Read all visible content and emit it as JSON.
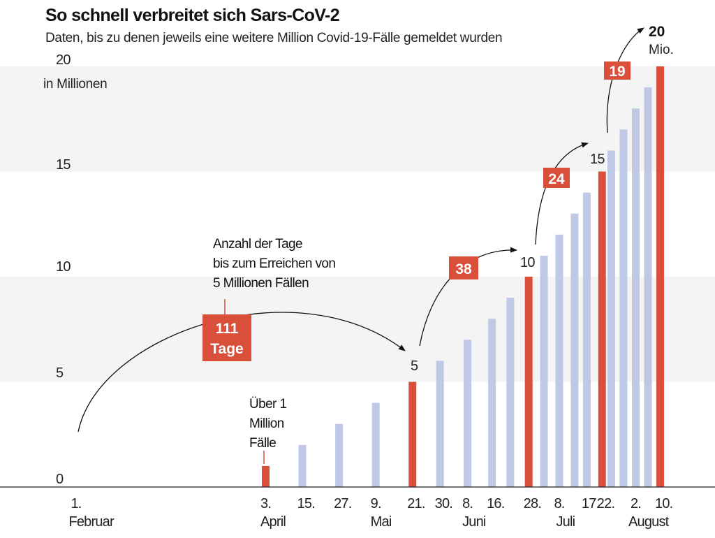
{
  "chart_data": {
    "type": "bar",
    "title": "So schnell verbreitet sich Sars-CoV-2",
    "subtitle": "Daten, bis zu denen jeweils eine weitere Million Covid-19-Fälle gemeldet wurden",
    "ylabel": "in Millionen",
    "ylim": [
      0,
      20
    ],
    "yticks": [
      "0",
      "5",
      "10",
      "15",
      "20"
    ],
    "grid": "alternating horizontal bands",
    "colors": {
      "milestone": "#d94f3a",
      "other": "#bfc9e6",
      "band": "#f4f4f4"
    },
    "bars": [
      {
        "date": "2020-04-03",
        "value": 1,
        "milestone": true
      },
      {
        "date": "2020-04-15",
        "value": 2
      },
      {
        "date": "2020-04-27",
        "value": 3
      },
      {
        "date": "2020-05-09",
        "value": 4
      },
      {
        "date": "2020-05-21",
        "value": 5,
        "milestone": true
      },
      {
        "date": "2020-05-30",
        "value": 6
      },
      {
        "date": "2020-06-08",
        "value": 7
      },
      {
        "date": "2020-06-16",
        "value": 8
      },
      {
        "date": "2020-06-22",
        "value": 9
      },
      {
        "date": "2020-06-28",
        "value": 10,
        "milestone": true
      },
      {
        "date": "2020-07-03",
        "value": 11
      },
      {
        "date": "2020-07-08",
        "value": 12
      },
      {
        "date": "2020-07-13",
        "value": 13
      },
      {
        "date": "2020-07-17",
        "value": 14
      },
      {
        "date": "2020-07-22",
        "value": 15,
        "milestone": true
      },
      {
        "date": "2020-07-25",
        "value": 16
      },
      {
        "date": "2020-07-29",
        "value": 17
      },
      {
        "date": "2020-08-02",
        "value": 18
      },
      {
        "date": "2020-08-06",
        "value": 19
      },
      {
        "date": "2020-08-10",
        "value": 20,
        "milestone": true
      }
    ],
    "xticks": [
      {
        "date": "2020-02-01",
        "day": "1.",
        "month": "Februar"
      },
      {
        "date": "2020-04-03",
        "day": "3.",
        "month": "April"
      },
      {
        "date": "2020-04-15",
        "day": "15."
      },
      {
        "date": "2020-04-27",
        "day": "27."
      },
      {
        "date": "2020-05-09",
        "day": "9.",
        "month": "Mai"
      },
      {
        "date": "2020-05-21",
        "day": "21."
      },
      {
        "date": "2020-05-30",
        "day": "30."
      },
      {
        "date": "2020-06-08",
        "day": "8.",
        "month": "Juni"
      },
      {
        "date": "2020-06-16",
        "day": "16."
      },
      {
        "date": "2020-06-28",
        "day": "28."
      },
      {
        "date": "2020-07-08",
        "day": "8.",
        "month": "Juli"
      },
      {
        "date": "2020-07-17",
        "day": "17."
      },
      {
        "date": "2020-07-22",
        "day": "22."
      },
      {
        "date": "2020-08-02",
        "day": "2.",
        "month": "August"
      },
      {
        "date": "2020-08-10",
        "day": "10."
      }
    ],
    "bar_labels": {
      "five": "5",
      "ten": "10",
      "fifteen": "15",
      "twenty": "20",
      "twenty_unit": "Mio."
    },
    "annotations": {
      "days_note": [
        "Anzahl der Tage",
        "bis zum Erreichen von",
        "5 Millionen Fällen"
      ],
      "first_million": [
        "Über 1",
        "Million",
        "Fälle"
      ],
      "intervals": [
        {
          "value": "111",
          "unit": "Tage"
        },
        {
          "value": "38"
        },
        {
          "value": "24"
        },
        {
          "value": "19"
        }
      ]
    }
  }
}
